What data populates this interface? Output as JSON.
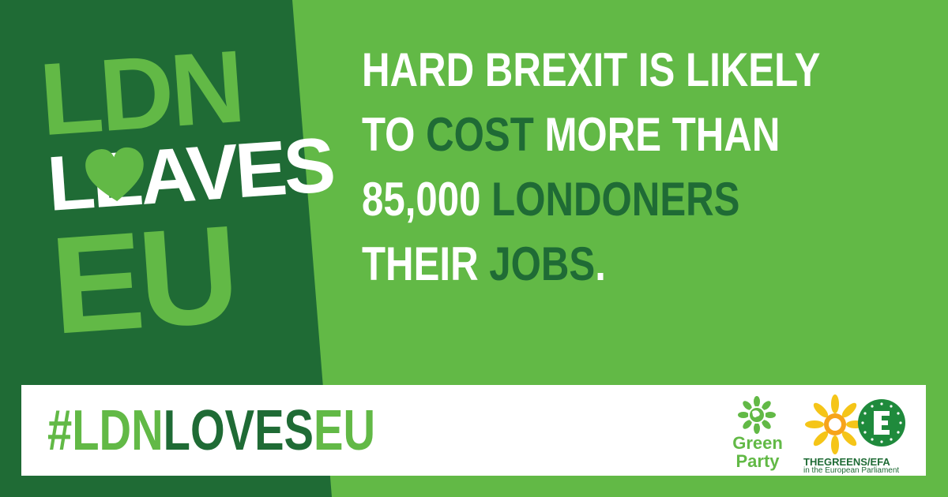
{
  "colors": {
    "light_green": "#62b946",
    "dark_green": "#1f6b35",
    "white": "#ffffff"
  },
  "logo": {
    "line1": "LDN",
    "line2": "LEAVES",
    "line3": "EU",
    "heart_icon": "heart-icon"
  },
  "headline": {
    "line1": {
      "a": "HARD BREXIT IS LIKELY"
    },
    "line2": {
      "a": "TO ",
      "b": "COST",
      "c": " MORE THAN"
    },
    "line3": {
      "a": "85,000 ",
      "b": "LONDONERS"
    },
    "line4": {
      "a": "THEIR ",
      "b": "JOBS",
      "c": "."
    }
  },
  "hashtag": {
    "part1": "#LDN",
    "part2": "LOVES",
    "part3": "EU"
  },
  "green_party": {
    "icon": "globe-flower-icon",
    "line1": "Green",
    "line2": "Party"
  },
  "greens_efa": {
    "icon": "sunflower-stars-icon",
    "name": "THEGREENS/EFA",
    "sub": "in the European Parliament"
  }
}
